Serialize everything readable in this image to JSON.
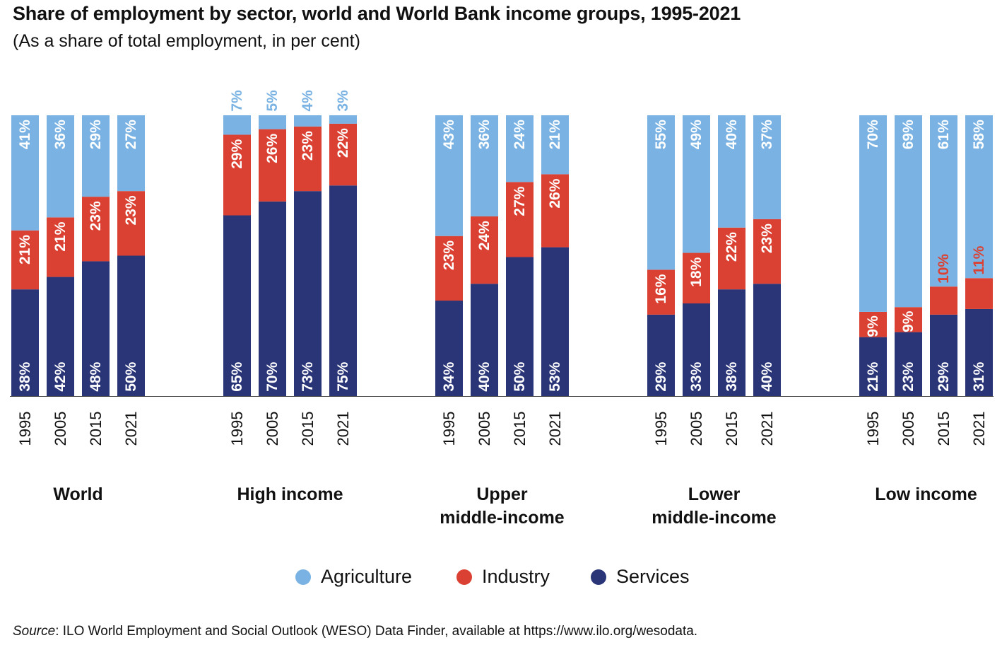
{
  "title": "Share of employment by sector, world and World Bank income groups, 1995-2021",
  "subtitle": "(As a share of total employment, in per cent)",
  "legend": [
    {
      "label": "Agriculture",
      "color": "#7ab3e3"
    },
    {
      "label": "Industry",
      "color": "#db4132"
    },
    {
      "label": "Services",
      "color": "#2a3578"
    }
  ],
  "source": {
    "label": "Source",
    "text": ": ILO World Employment and Social Outlook (WESO) Data Finder, available at https://www.ilo.org/wesodata."
  },
  "chart_data": {
    "type": "bar",
    "stacked": true,
    "ylim": [
      0,
      100
    ],
    "grid": false,
    "legend_position": "bottom-center",
    "categories": [
      "1995",
      "2005",
      "2015",
      "2021"
    ],
    "groups": [
      {
        "name": "World",
        "name_lines": [
          "World"
        ],
        "series": [
          {
            "name": "Services",
            "values": [
              38,
              42,
              48,
              50
            ],
            "labels": [
              "38%",
              "42%",
              "48%",
              "50%"
            ]
          },
          {
            "name": "Industry",
            "values": [
              21,
              21,
              23,
              23
            ],
            "labels": [
              "21%",
              "21%",
              "23%",
              "23%"
            ]
          },
          {
            "name": "Agriculture",
            "values": [
              41,
              36,
              29,
              27
            ],
            "labels": [
              "41%",
              "36%",
              "29%",
              "27%"
            ]
          }
        ]
      },
      {
        "name": "High income",
        "name_lines": [
          "High income"
        ],
        "series": [
          {
            "name": "Services",
            "values": [
              65,
              70,
              73,
              75
            ],
            "labels": [
              "65%",
              "70%",
              "73%",
              "75%"
            ]
          },
          {
            "name": "Industry",
            "values": [
              29,
              26,
              23,
              22
            ],
            "labels": [
              "29%",
              "26%",
              "23%",
              "22%"
            ]
          },
          {
            "name": "Agriculture",
            "values": [
              7,
              5,
              4,
              3
            ],
            "labels": [
              "7%",
              "5%",
              "4%",
              "3%"
            ]
          }
        ]
      },
      {
        "name": "Upper middle-income",
        "name_lines": [
          "Upper",
          "middle-income"
        ],
        "series": [
          {
            "name": "Services",
            "values": [
              34,
              40,
              50,
              53
            ],
            "labels": [
              "34%",
              "40%",
              "50%",
              "53%"
            ]
          },
          {
            "name": "Industry",
            "values": [
              23,
              24,
              27,
              26
            ],
            "labels": [
              "23%",
              "24%",
              "27%",
              "26%"
            ]
          },
          {
            "name": "Agriculture",
            "values": [
              43,
              36,
              24,
              21
            ],
            "labels": [
              "43%",
              "36%",
              "24%",
              "21%"
            ]
          }
        ]
      },
      {
        "name": "Lower middle-income",
        "name_lines": [
          "Lower",
          "middle-income"
        ],
        "series": [
          {
            "name": "Services",
            "values": [
              29,
              33,
              38,
              40
            ],
            "labels": [
              "29%",
              "33%",
              "38%",
              "40%"
            ]
          },
          {
            "name": "Industry",
            "values": [
              16,
              18,
              22,
              23
            ],
            "labels": [
              "16%",
              "18%",
              "22%",
              "23%"
            ]
          },
          {
            "name": "Agriculture",
            "values": [
              55,
              49,
              40,
              37
            ],
            "labels": [
              "55%",
              "49%",
              "40%",
              "37%"
            ]
          }
        ]
      },
      {
        "name": "Low income",
        "name_lines": [
          "Low income"
        ],
        "series": [
          {
            "name": "Services",
            "values": [
              21,
              23,
              29,
              31
            ],
            "labels": [
              "21%",
              "23%",
              "29%",
              "31%"
            ]
          },
          {
            "name": "Industry",
            "values": [
              9,
              9,
              10,
              11
            ],
            "labels": [
              "9%",
              "9%",
              "10%",
              "11%"
            ]
          },
          {
            "name": "Agriculture",
            "values": [
              70,
              69,
              61,
              58
            ],
            "labels": [
              "70%",
              "69%",
              "61%",
              "58%"
            ]
          }
        ]
      }
    ]
  }
}
